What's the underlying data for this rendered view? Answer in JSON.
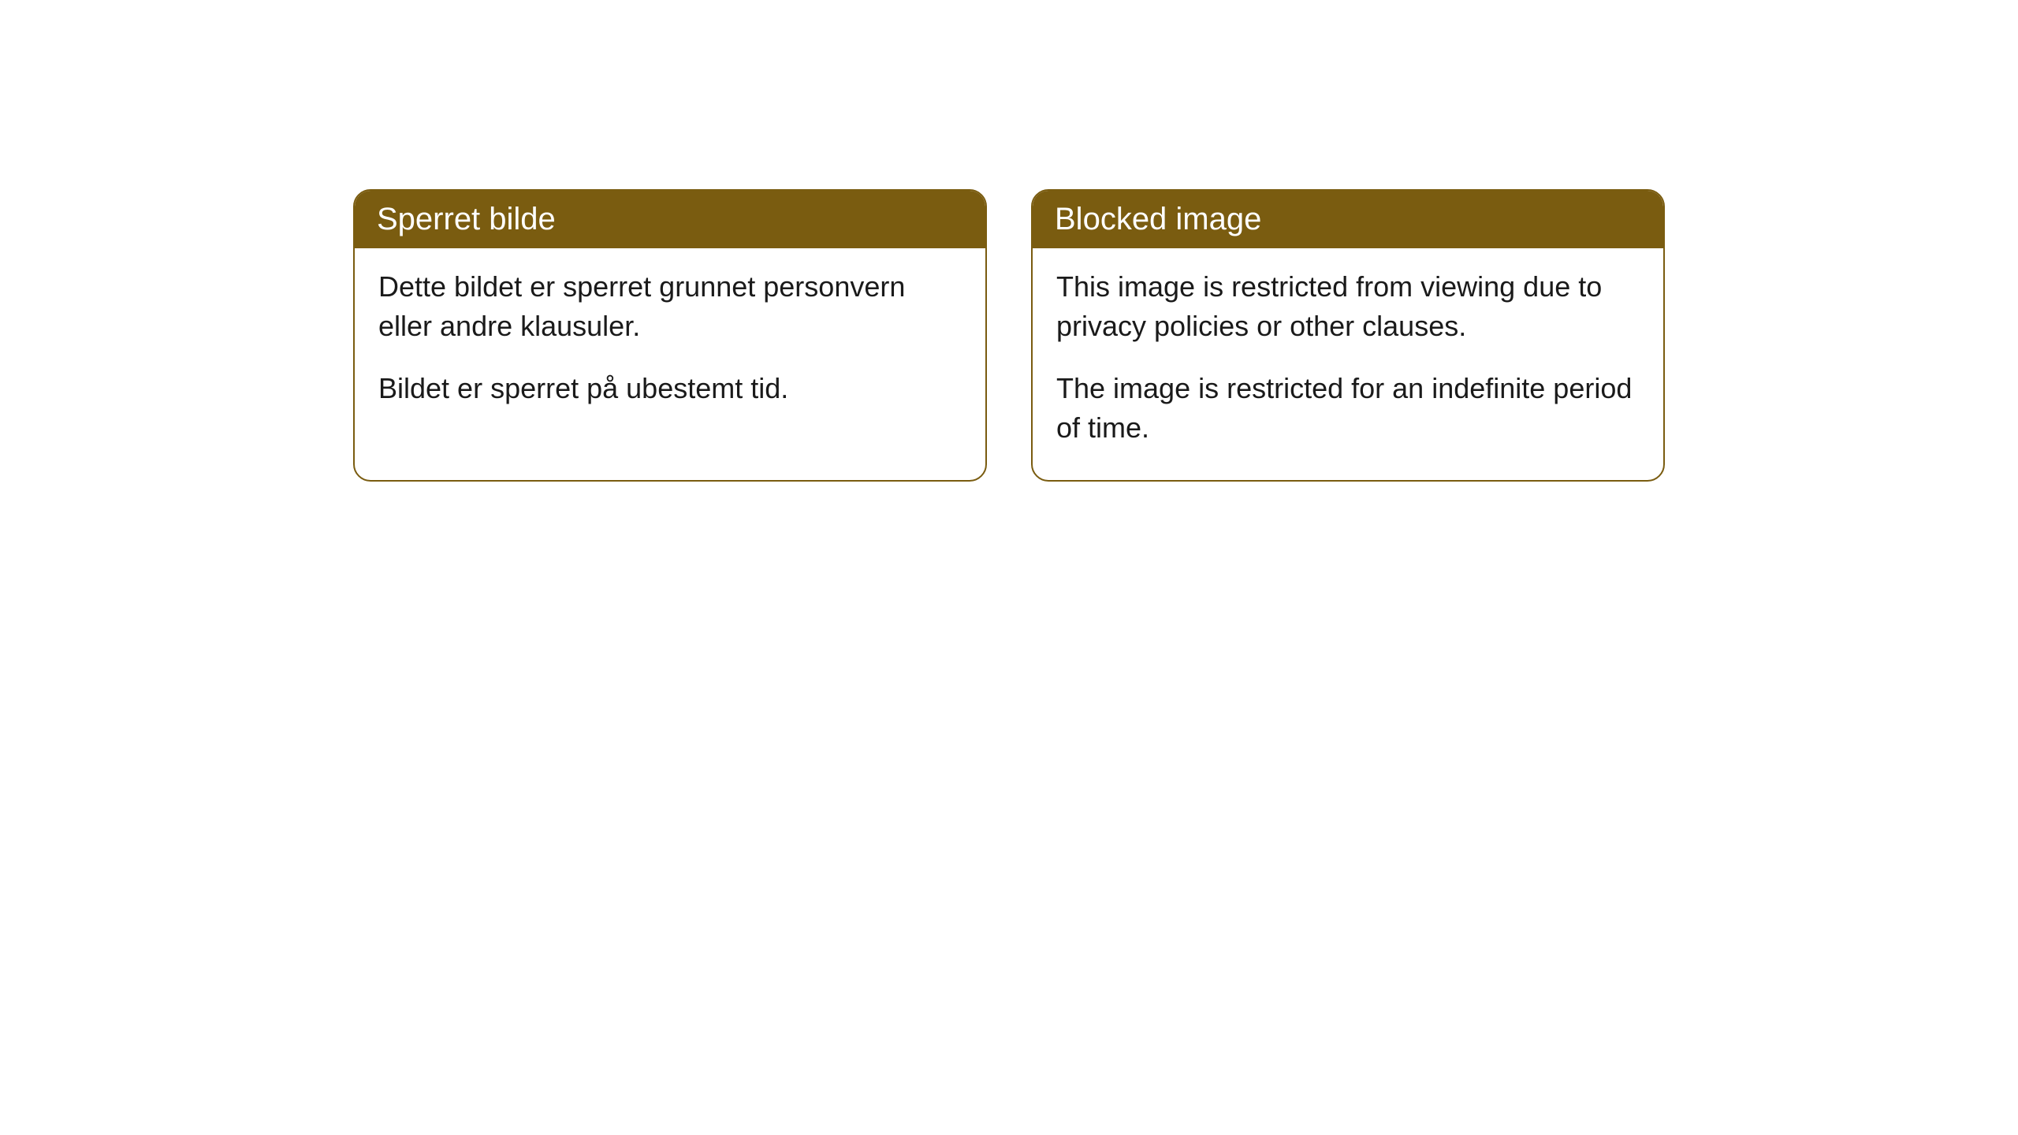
{
  "cards": [
    {
      "title": "Sperret bilde",
      "paragraph1": "Dette bildet er sperret grunnet personvern eller andre klausuler.",
      "paragraph2": "Bildet er sperret på ubestemt tid."
    },
    {
      "title": "Blocked image",
      "paragraph1": "This image is restricted from viewing due to privacy policies or other clauses.",
      "paragraph2": "The image is restricted for an indefinite period of time."
    }
  ],
  "style": {
    "accent_color": "#7a5c10",
    "background_color": "#ffffff",
    "text_color": "#1a1a1a",
    "header_text_color": "#ffffff",
    "border_radius": 22,
    "header_fontsize": 40,
    "body_fontsize": 36
  }
}
